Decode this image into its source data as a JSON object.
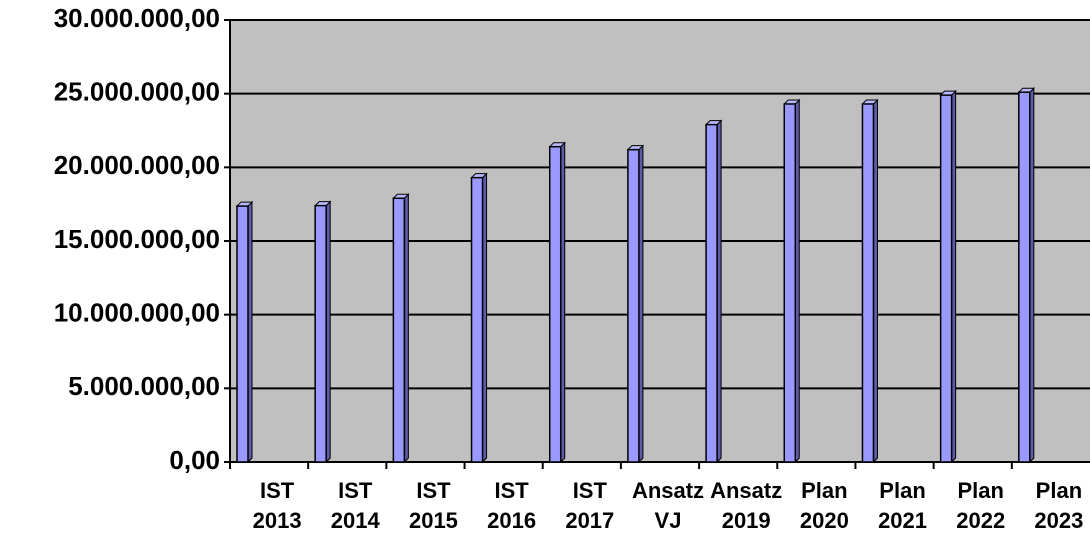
{
  "chart_data": {
    "type": "bar",
    "categories": [
      "IST 2013",
      "IST 2014",
      "IST 2015",
      "IST 2016",
      "IST 2017",
      "Ansatz VJ",
      "Ansatz 2019",
      "Plan 2020",
      "Plan 2021",
      "Plan 2022",
      "Plan 2023"
    ],
    "values": [
      17370000,
      17400000,
      17900000,
      19300000,
      21400000,
      21200000,
      22900000,
      24300000,
      24300000,
      24900000,
      25100000
    ],
    "color": "#9999ff",
    "ylim": [
      0,
      30000000
    ],
    "yticks": [
      {
        "value": 0,
        "label": "0,00"
      },
      {
        "value": 5000000,
        "label": "5.000.000,00"
      },
      {
        "value": 10000000,
        "label": "10.000.000,00"
      },
      {
        "value": 15000000,
        "label": "15.000.000,00"
      },
      {
        "value": 20000000,
        "label": "20.000.000,00"
      },
      {
        "value": 25000000,
        "label": "25.000.000,00"
      },
      {
        "value": 30000000,
        "label": "30.000.000,00"
      }
    ],
    "grid": true
  }
}
